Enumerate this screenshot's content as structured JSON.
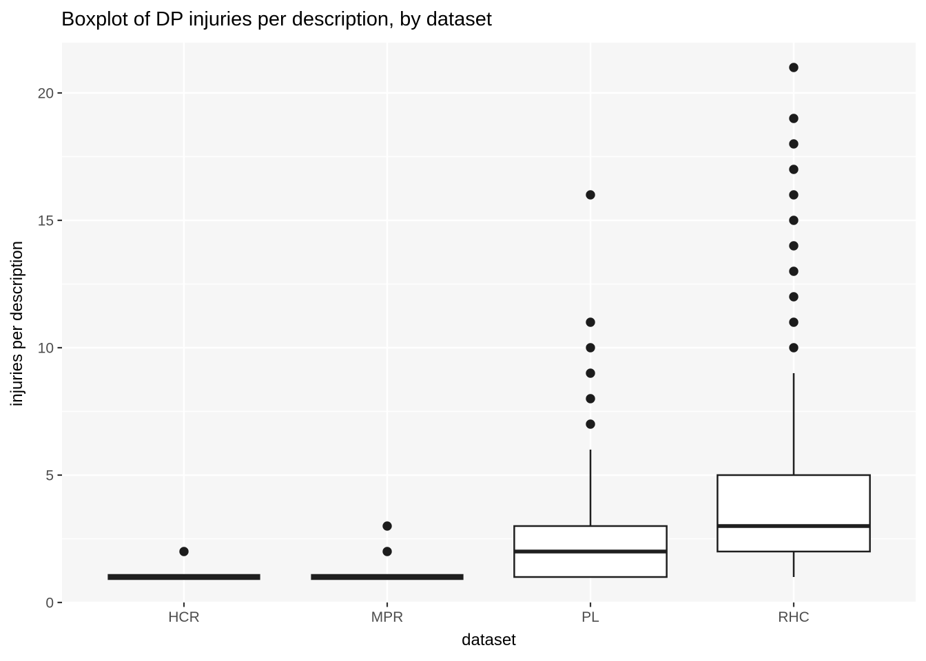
{
  "chart_data": {
    "type": "boxplot",
    "title": "Boxplot of DP injuries per description, by dataset",
    "xlabel": "dataset",
    "ylabel": "injuries per description",
    "categories": [
      "HCR",
      "MPR",
      "PL",
      "RHC"
    ],
    "y_ticks": [
      0,
      5,
      10,
      15,
      20
    ],
    "y_minor_ticks": [
      2.5,
      7.5,
      12.5,
      17.5
    ],
    "ylim": [
      0,
      22
    ],
    "grid": "major-and-minor, white on light gray panel",
    "legend": "none",
    "boxes": [
      {
        "category": "HCR",
        "whisker_low": 1,
        "q1": 1,
        "median": 1,
        "q3": 1,
        "whisker_high": 1,
        "outliers": [
          2
        ]
      },
      {
        "category": "MPR",
        "whisker_low": 1,
        "q1": 1,
        "median": 1,
        "q3": 1,
        "whisker_high": 1,
        "outliers": [
          2,
          3
        ]
      },
      {
        "category": "PL",
        "whisker_low": 1,
        "q1": 1,
        "median": 2,
        "q3": 3,
        "whisker_high": 6,
        "outliers": [
          7,
          8,
          9,
          10,
          11,
          16
        ]
      },
      {
        "category": "RHC",
        "whisker_low": 1,
        "q1": 2,
        "median": 3,
        "q3": 5,
        "whisker_high": 9,
        "outliers": [
          10,
          11,
          12,
          13,
          14,
          15,
          16,
          17,
          18,
          19,
          21
        ]
      }
    ],
    "colors": {
      "page_bg": "#ffffff",
      "panel_bg": "#f6f6f6",
      "grid": "#ffffff",
      "box_stroke": "#1f1f1f",
      "box_fill": "#ffffff",
      "outlier_fill": "#1c1c1c",
      "tick_label": "#4d4d4d",
      "tick_mark": "#333333",
      "axis_title": "#000000",
      "title": "#000000"
    }
  }
}
